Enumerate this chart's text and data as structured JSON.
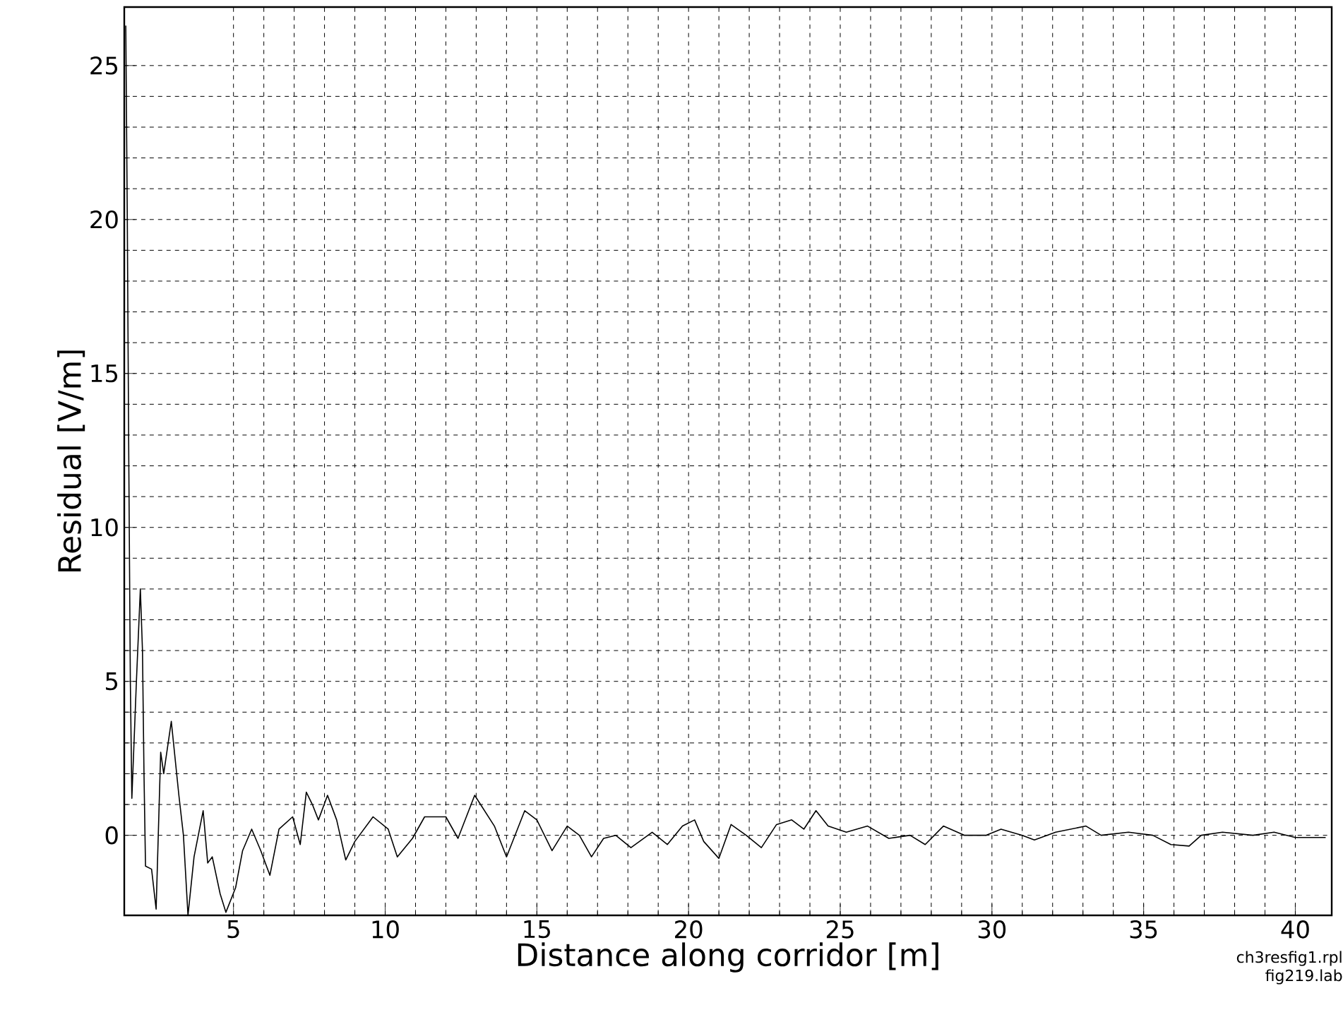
{
  "chart_data": {
    "type": "line",
    "xlabel": "Distance along corridor  [m]",
    "ylabel": "Residual  [V/m]",
    "annotations": [
      "ch3resfig1.rpl",
      "fig219.lab"
    ],
    "xlim": [
      1.4,
      41.2
    ],
    "ylim": [
      -2.6,
      26.9
    ],
    "xticks": [
      5,
      10,
      15,
      20,
      25,
      30,
      35,
      40
    ],
    "yticks": [
      0,
      5,
      10,
      15,
      20,
      25
    ],
    "grid": true,
    "marker": "none",
    "line_style": "solid",
    "series": [
      {
        "color": "#000000",
        "x": [
          1.45,
          1.5,
          1.55,
          1.6,
          1.65,
          1.8,
          1.93,
          2.0,
          2.05,
          2.1,
          2.3,
          2.45,
          2.6,
          2.7,
          2.95,
          3.2,
          3.35,
          3.5,
          3.7,
          4.0,
          4.15,
          4.3,
          4.56,
          4.75,
          5.07,
          5.3,
          5.6,
          5.9,
          6.2,
          6.5,
          6.95,
          7.2,
          7.4,
          7.6,
          7.8,
          8.1,
          8.4,
          8.7,
          9.0,
          9.6,
          10.1,
          10.4,
          10.9,
          11.3,
          12.0,
          12.4,
          12.95,
          13.6,
          14.0,
          14.6,
          15.0,
          15.2,
          15.5,
          16.0,
          16.4,
          16.8,
          17.2,
          17.6,
          18.1,
          18.8,
          19.3,
          19.8,
          20.2,
          20.5,
          21.0,
          21.4,
          21.9,
          22.4,
          22.9,
          23.4,
          23.8,
          24.2,
          24.6,
          25.2,
          25.9,
          26.6,
          27.3,
          27.8,
          28.4,
          29.1,
          29.8,
          30.3,
          31.0,
          31.4,
          32.1,
          33.1,
          33.6,
          34.5,
          35.3,
          35.9,
          36.5,
          36.9,
          37.6,
          38.6,
          39.3,
          40.0,
          41.0
        ],
        "values": [
          26.3,
          20,
          12,
          5,
          1.2,
          5,
          8.0,
          6,
          2,
          -1,
          -1.1,
          -2.4,
          2.7,
          2.0,
          3.7,
          1.3,
          0,
          -2.6,
          -0.7,
          0.8,
          -0.9,
          -0.7,
          -1.9,
          -2.5,
          -1.7,
          -0.5,
          0.2,
          -0.5,
          -1.3,
          0.2,
          0.6,
          -0.3,
          1.4,
          1.0,
          0.5,
          1.3,
          0.5,
          -0.8,
          -0.2,
          0.6,
          0.2,
          -0.7,
          -0.1,
          0.6,
          0.6,
          -0.1,
          1.3,
          0.3,
          -0.7,
          0.8,
          0.5,
          0.1,
          -0.5,
          0.3,
          0,
          -0.7,
          -0.1,
          0,
          -0.4,
          0.1,
          -0.3,
          0.3,
          0.5,
          -0.2,
          -0.75,
          0.35,
          0,
          -0.4,
          0.35,
          0.5,
          0.2,
          0.8,
          0.3,
          0.1,
          0.3,
          -0.1,
          0,
          -0.3,
          0.3,
          0,
          0,
          0.2,
          0,
          -0.15,
          0.1,
          0.3,
          0,
          0.1,
          0,
          -0.3,
          -0.35,
          0,
          0.1,
          0,
          0.1,
          -0.07,
          -0.07
        ]
      }
    ]
  }
}
